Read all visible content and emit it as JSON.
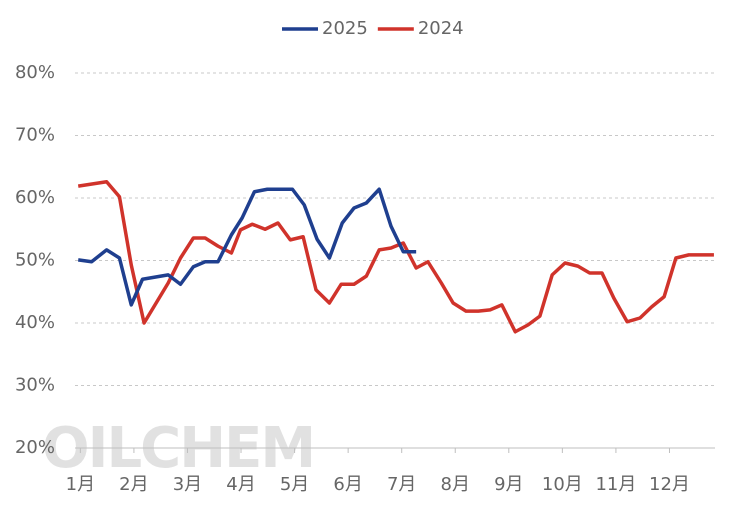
{
  "chart_data": {
    "type": "line",
    "watermark": "OILCHEM",
    "xlim": [
      0.9,
      12.85
    ],
    "xticks": [
      {
        "value": 1,
        "label": "1月"
      },
      {
        "value": 2,
        "label": "2月"
      },
      {
        "value": 3,
        "label": "3月"
      },
      {
        "value": 4,
        "label": "4月"
      },
      {
        "value": 5,
        "label": "5月"
      },
      {
        "value": 6,
        "label": "6月"
      },
      {
        "value": 7,
        "label": "7月"
      },
      {
        "value": 8,
        "label": "8月"
      },
      {
        "value": 9,
        "label": "9月"
      },
      {
        "value": 10,
        "label": "10月"
      },
      {
        "value": 11,
        "label": "11月"
      },
      {
        "value": 12,
        "label": "12月"
      }
    ],
    "ylim": [
      20,
      80
    ],
    "yticks": [
      {
        "value": 20,
        "label": "20%"
      },
      {
        "value": 30,
        "label": "30%"
      },
      {
        "value": 40,
        "label": "40%"
      },
      {
        "value": 50,
        "label": "50%"
      },
      {
        "value": 60,
        "label": "60%"
      },
      {
        "value": 70,
        "label": "70%"
      },
      {
        "value": 80,
        "label": "80%"
      }
    ],
    "grid": true,
    "legend": "top",
    "series": [
      {
        "name": "2025",
        "color": "#1f3f8f",
        "x": [
          0.96,
          1.21,
          1.49,
          1.73,
          1.95,
          2.16,
          2.64,
          2.87,
          3.11,
          3.33,
          3.57,
          3.82,
          4.02,
          4.25,
          4.49,
          4.73,
          4.96,
          5.18,
          5.42,
          5.65,
          5.89,
          6.11,
          6.34,
          6.58,
          6.8,
          7.03,
          7.27
        ],
        "values": [
          50.1,
          49.8,
          51.7,
          50.4,
          42.9,
          47.0,
          47.7,
          46.2,
          49.0,
          49.8,
          49.8,
          54.1,
          56.8,
          61.0,
          61.4,
          61.4,
          61.4,
          58.9,
          53.4,
          50.4,
          56.0,
          58.4,
          59.2,
          61.4,
          55.5,
          51.4,
          51.4
        ]
      },
      {
        "name": "2024",
        "color": "#d0332b",
        "x": [
          0.96,
          1.49,
          1.73,
          1.95,
          2.19,
          2.64,
          2.87,
          3.11,
          3.33,
          3.57,
          3.82,
          3.99,
          4.21,
          4.45,
          4.69,
          4.92,
          5.16,
          5.4,
          5.65,
          5.87,
          6.11,
          6.34,
          6.58,
          6.8,
          7.03,
          7.27,
          7.49,
          7.74,
          7.96,
          8.2,
          8.43,
          8.65,
          8.87,
          9.12,
          9.36,
          9.58,
          9.81,
          10.05,
          10.29,
          10.51,
          10.74,
          10.96,
          11.21,
          11.45,
          11.67,
          11.9,
          12.12,
          12.36,
          12.59,
          12.83
        ],
        "values": [
          61.9,
          62.6,
          60.2,
          49.3,
          40.0,
          46.4,
          50.4,
          53.6,
          53.6,
          52.3,
          51.2,
          54.9,
          55.8,
          55.0,
          56.0,
          53.3,
          53.8,
          45.3,
          43.2,
          46.2,
          46.2,
          47.5,
          51.7,
          52.0,
          52.8,
          48.8,
          49.8,
          46.4,
          43.2,
          41.9,
          41.9,
          42.1,
          42.9,
          38.6,
          39.7,
          41.1,
          47.7,
          49.6,
          49.1,
          48.0,
          48.0,
          44.0,
          40.2,
          40.8,
          42.6,
          44.2,
          50.4,
          50.9,
          50.9,
          50.9
        ]
      }
    ]
  }
}
